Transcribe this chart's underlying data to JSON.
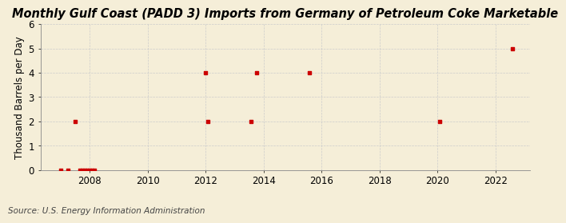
{
  "title": "Monthly Gulf Coast (PADD 3) Imports from Germany of Petroleum Coke Marketable",
  "ylabel": "Thousand Barrels per Day",
  "source": "Source: U.S. Energy Information Administration",
  "background_color": "#f5eed8",
  "plot_background_color": "#f5eed8",
  "grid_color": "#cccccc",
  "data_color": "#cc0000",
  "xlim": [
    2006.3,
    2023.2
  ],
  "ylim": [
    0,
    6
  ],
  "xticks": [
    2008,
    2010,
    2012,
    2014,
    2016,
    2018,
    2020,
    2022
  ],
  "yticks": [
    0,
    1,
    2,
    3,
    4,
    5,
    6
  ],
  "data_points": [
    [
      2007.0,
      0
    ],
    [
      2007.25,
      0
    ],
    [
      2007.5,
      2
    ],
    [
      2007.67,
      0
    ],
    [
      2007.75,
      0
    ],
    [
      2007.83,
      0
    ],
    [
      2007.92,
      0
    ],
    [
      2008.0,
      0
    ],
    [
      2008.08,
      0
    ],
    [
      2008.17,
      0
    ],
    [
      2012.0,
      4
    ],
    [
      2012.08,
      2
    ],
    [
      2013.58,
      2
    ],
    [
      2013.75,
      4
    ],
    [
      2015.58,
      4
    ],
    [
      2020.08,
      2
    ],
    [
      2022.58,
      5
    ]
  ],
  "title_fontsize": 10.5,
  "label_fontsize": 8.5,
  "tick_fontsize": 8.5,
  "source_fontsize": 7.5
}
